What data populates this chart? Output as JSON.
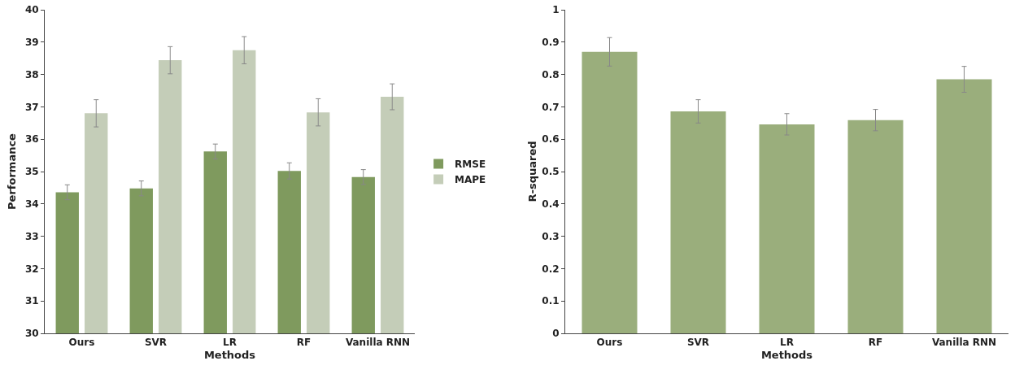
{
  "chart_data": [
    {
      "type": "bar",
      "xlabel": "Methods",
      "ylabel": "Performance",
      "categories": [
        "Ours",
        "SVR",
        "LR",
        "RF",
        "Vanilla RNN"
      ],
      "series": [
        {
          "name": "RMSE",
          "color": "#7f9a5e",
          "values": [
            34.36,
            34.48,
            35.62,
            35.02,
            34.83
          ],
          "errors": [
            0.23,
            0.23,
            0.23,
            0.25,
            0.23
          ]
        },
        {
          "name": "MAPE",
          "color": "#c4cdb8",
          "values": [
            36.8,
            38.44,
            38.75,
            36.83,
            37.31
          ],
          "errors": [
            0.42,
            0.42,
            0.42,
            0.42,
            0.4
          ]
        }
      ],
      "ylim": [
        30,
        40
      ],
      "yticks": [
        30,
        31,
        32,
        33,
        34,
        35,
        36,
        37,
        38,
        39,
        40
      ],
      "grid": false,
      "legend": "right"
    },
    {
      "type": "bar",
      "xlabel": "Methods",
      "ylabel": "R-squared",
      "categories": [
        "Ours",
        "SVR",
        "LR",
        "RF",
        "Vanilla RNN"
      ],
      "series": [
        {
          "color": "#9aae7c",
          "values": [
            0.87,
            0.686,
            0.646,
            0.659,
            0.785
          ],
          "errors": [
            0.044,
            0.036,
            0.033,
            0.033,
            0.04
          ]
        }
      ],
      "ylim": [
        0,
        1
      ],
      "yticks": [
        0,
        0.1,
        0.2,
        0.3,
        0.4,
        0.5,
        0.6,
        0.7,
        0.8,
        0.9,
        1
      ],
      "grid": false,
      "legend": false
    }
  ]
}
